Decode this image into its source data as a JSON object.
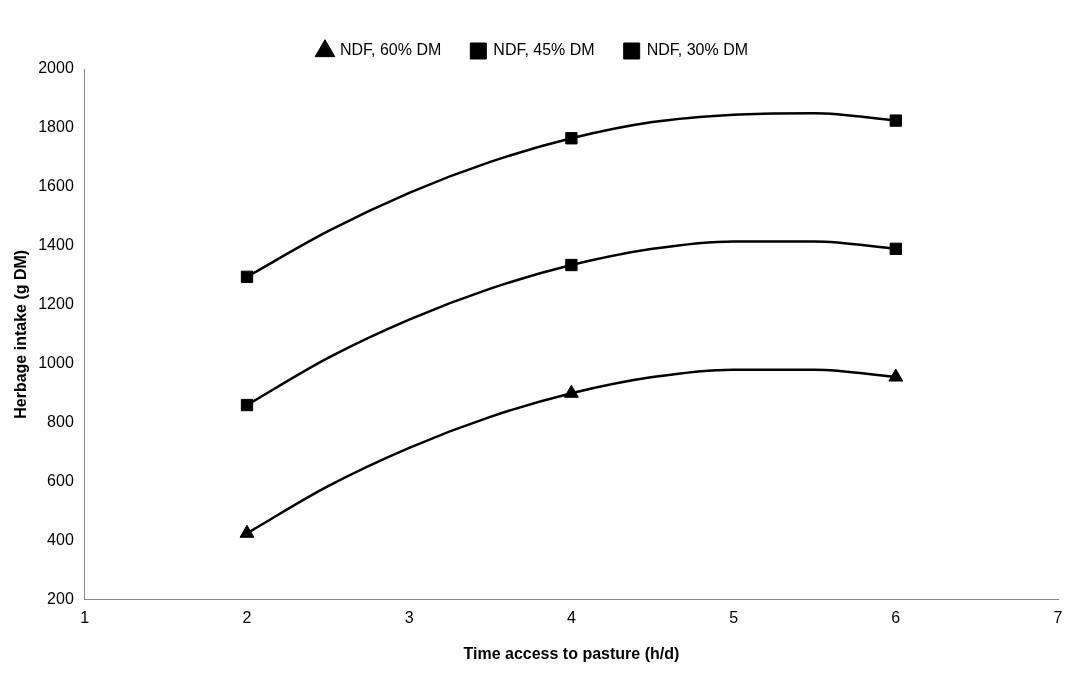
{
  "chart_data": {
    "type": "scatter",
    "xlabel": "Time access to pasture (h/d)",
    "ylabel": "Herbage intake (g DM)",
    "xlim": [
      1,
      7
    ],
    "xticks": [
      1,
      2,
      3,
      4,
      5,
      6,
      7
    ],
    "ylim": [
      200,
      2000
    ],
    "yticks": [
      200,
      400,
      600,
      800,
      1000,
      1200,
      1400,
      1600,
      1800,
      2000
    ],
    "grid": false,
    "legend": "top",
    "series": [
      {
        "name": "NDF, 60% DM",
        "marker": "triangle",
        "color": "#000000",
        "x": [
          2,
          4,
          6
        ],
        "values": [
          425,
          900,
          955
        ]
      },
      {
        "name": "NDF, 45% DM",
        "marker": "square",
        "color": "#000000",
        "x": [
          2,
          4,
          6
        ],
        "values": [
          860,
          1335,
          1390
        ]
      },
      {
        "name": "NDF, 30% DM",
        "marker": "square",
        "color": "#000000",
        "x": [
          2,
          4,
          6
        ],
        "values": [
          1295,
          1765,
          1825
        ]
      },
      {
        "type": "line",
        "marker": "none",
        "color": "#000000",
        "x": [
          2,
          2.5,
          3,
          3.5,
          4,
          4.5,
          5,
          5.5,
          6
        ],
        "values": [
          425,
          585,
          715,
          820,
          900,
          955,
          980,
          980,
          955
        ]
      },
      {
        "type": "line",
        "marker": "none",
        "color": "#000000",
        "x": [
          2,
          2.5,
          3,
          3.5,
          4,
          4.5,
          5,
          5.5,
          6
        ],
        "values": [
          860,
          1020,
          1150,
          1255,
          1335,
          1390,
          1415,
          1415,
          1390
        ]
      },
      {
        "type": "line",
        "marker": "none",
        "color": "#000000",
        "x": [
          2,
          2.5,
          3,
          3.5,
          4,
          4.5,
          5,
          5.5,
          6
        ],
        "values": [
          1295,
          1450,
          1580,
          1685,
          1765,
          1820,
          1845,
          1850,
          1825
        ]
      }
    ]
  }
}
